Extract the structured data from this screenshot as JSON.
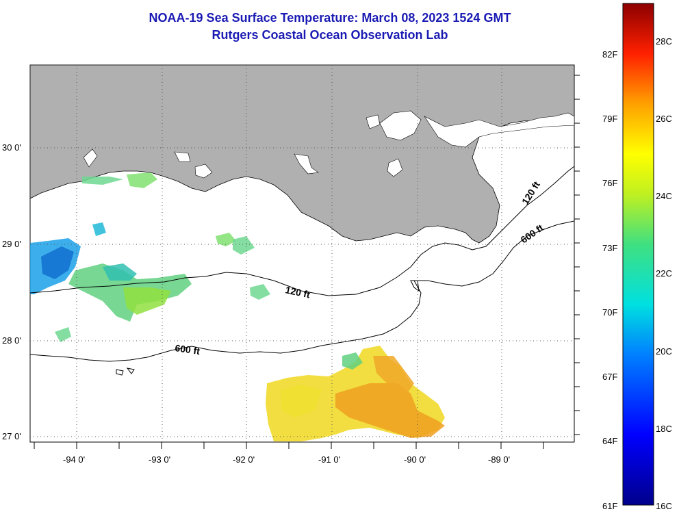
{
  "title_line1": "NOAA-19 Sea Surface Temperature:  March 08, 2023 1524 GMT",
  "title_line2": "Rutgers Coastal Ocean Observation Lab",
  "lat_labels": [
    "30 0'",
    "29 0'",
    "28 0'",
    "27 0'"
  ],
  "lon_labels": [
    "-94 0'",
    "-93 0'",
    "-92 0'",
    "-91 0'",
    "-90 0'",
    "-89 0'"
  ],
  "contours": [
    "120 ft",
    "600 ft",
    "120 ft",
    "600 ft"
  ],
  "colorbar": {
    "f_labels": [
      "82F",
      "79F",
      "76F",
      "73F",
      "70F",
      "67F",
      "64F",
      "61F"
    ],
    "c_labels": [
      "28C",
      "26C",
      "24C",
      "22C",
      "20C",
      "18C",
      "16C"
    ],
    "range_c": [
      16,
      29
    ]
  },
  "colors": {
    "land": "#b0b0b0",
    "title": "#1a1ab4",
    "grid": "#555555"
  }
}
